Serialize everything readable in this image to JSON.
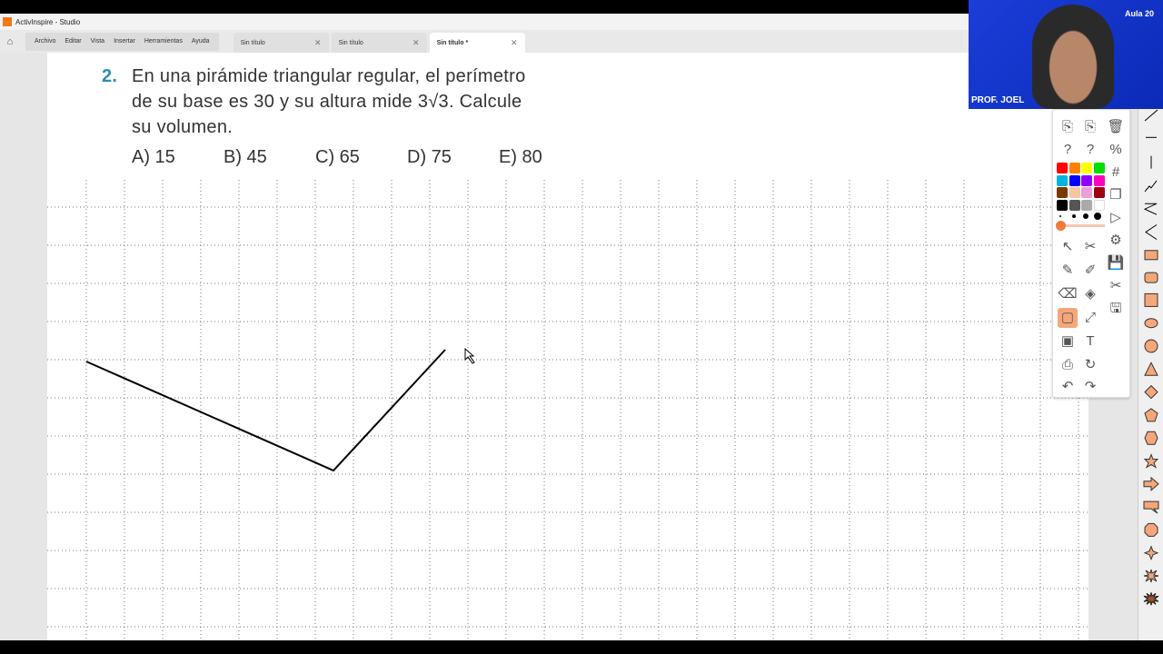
{
  "window": {
    "title": "ActivInspire - Studio"
  },
  "menu": [
    "Archivo",
    "Editar",
    "Vista",
    "Insertar",
    "Herramientas",
    "Ayuda"
  ],
  "tabs": [
    {
      "label": "Sin título",
      "active": false
    },
    {
      "label": "Sin título",
      "active": false
    },
    {
      "label": "Sin título *",
      "active": true
    }
  ],
  "question": {
    "number": "2.",
    "lines": [
      "En una pirámide triangular regular, el perímetro",
      "de su base es 30 y su altura mide 3√3. Calcule",
      "su volumen."
    ]
  },
  "options": [
    "A)  15",
    "B)  45",
    "C)  65",
    "D)  75",
    "E)  80"
  ],
  "webcam": {
    "name": "PROF. JOEL",
    "brand": "Aula 20"
  },
  "palette": [
    "#ff0000",
    "#ff7f00",
    "#ffff00",
    "#00e000",
    "#00b4e0",
    "#0000ff",
    "#9000ff",
    "#ff00c0",
    "#7a3b00",
    "#f5c7a0",
    "#e8a0d8",
    "#a00010",
    "#000000",
    "#555555",
    "#aaaaaa",
    "#ffffff"
  ],
  "accent": "#f5a77a",
  "shapes": [
    "line",
    "vertical-line",
    "short-line",
    "freehand",
    "zigzag",
    "chevron",
    "rectangle",
    "rounded-rectangle",
    "square",
    "ellipse",
    "circle",
    "triangle",
    "diamond",
    "pentagon",
    "hexagon",
    "star",
    "arrow",
    "callout",
    "octagon",
    "four-point-star",
    "burst",
    "starburst"
  ]
}
